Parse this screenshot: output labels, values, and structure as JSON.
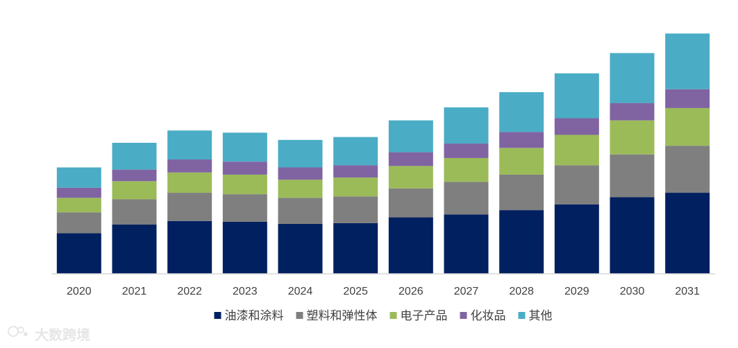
{
  "chart_data": {
    "type": "bar",
    "stacked": true,
    "title": "",
    "xlabel": "",
    "ylabel": "",
    "categories": [
      "2020",
      "2021",
      "2022",
      "2023",
      "2024",
      "2025",
      "2026",
      "2027",
      "2028",
      "2029",
      "2030",
      "2031"
    ],
    "series": [
      {
        "name": "油漆和涂料",
        "color": "#002060",
        "values": [
          56,
          68,
          73,
          72,
          69,
          70,
          78,
          82,
          88,
          96,
          106,
          112
        ]
      },
      {
        "name": "塑料和弹性体",
        "color": "#7f7f7f",
        "values": [
          29,
          35,
          39,
          38,
          36,
          37,
          40,
          45,
          49,
          54,
          59,
          65
        ]
      },
      {
        "name": "电子产品",
        "color": "#9bbb59",
        "values": [
          20,
          25,
          28,
          27,
          25,
          26,
          31,
          33,
          37,
          42,
          47,
          52
        ]
      },
      {
        "name": "化妆品",
        "color": "#8064a2",
        "values": [
          14,
          16,
          18,
          18,
          17,
          17,
          19,
          20,
          22,
          23,
          24,
          26
        ]
      },
      {
        "name": "其他",
        "color": "#4bacc6",
        "values": [
          28,
          37,
          40,
          40,
          38,
          39,
          44,
          50,
          55,
          62,
          69,
          77
        ]
      }
    ],
    "ylim": [
      0,
      340
    ],
    "grid": false,
    "legend_position": "bottom"
  },
  "watermark": {
    "text": "大数跨境"
  }
}
